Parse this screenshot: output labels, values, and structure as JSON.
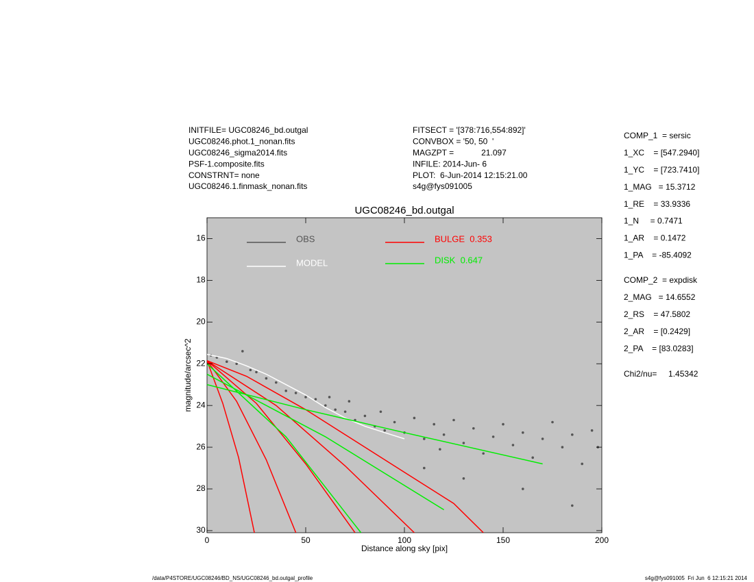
{
  "header": {
    "left": [
      "INITFILE= UGC08246_bd.outgal",
      "UGC08246.phot.1_nonan.fits",
      "UGC08246_sigma2014.fits",
      "PSF-1.composite.fits",
      "CONSTRNT= none",
      "UGC08246.1.finmask_nonan.fits"
    ],
    "middle": [
      "FITSECT = '[378:716,554:892]'",
      "CONVBOX = '50, 50  '",
      "MAGZPT =            21.097",
      "INFILE: 2014-Jun- 6",
      "PLOT:  6-Jun-2014 12:15:21.00",
      "s4g@fys091005"
    ],
    "right": [
      [
        "COMP_1  = sersic",
        "1_XC    = [547.2940]",
        "1_YC    = [723.7410]",
        "1_MAG   = 15.3712",
        "1_RE    = 33.9336",
        "1_N     = 0.7471",
        "1_AR    = 0.1472",
        "1_PA    = -85.4092"
      ],
      [
        "COMP_2  = expdisk",
        "2_MAG   = 14.6552",
        "2_RS    = 47.5802",
        "2_AR    = [0.2429]",
        "2_PA    = [83.0283]"
      ],
      [
        "Chi2/nu=     1.45342"
      ]
    ]
  },
  "footer": {
    "left": "/data/P4STORE/UGC08246/BD_NS/UGC08246_bd.outgal_profile",
    "right": "s4g@fys091005  Fri Jun  6 12:15:21 2014"
  },
  "chart_data": {
    "type": "line",
    "title": "UGC08246_bd.outgal",
    "xlabel": "Distance along sky [pix]",
    "ylabel": "magnitude/arcsec^2",
    "xlim": [
      0,
      200
    ],
    "ylim": [
      30.1,
      15
    ],
    "xticks": [
      0,
      50,
      100,
      150,
      200
    ],
    "yticks": [
      16,
      18,
      20,
      22,
      24,
      26,
      28,
      30
    ],
    "background": "#c4c4c4",
    "series": [
      {
        "name": "OBS",
        "color": "#555555",
        "mode": "markers",
        "x": [
          2,
          5,
          10,
          15,
          18,
          22,
          25,
          30,
          35,
          40,
          45,
          50,
          55,
          60,
          62,
          65,
          70,
          72,
          75,
          80,
          85,
          88,
          90,
          95,
          100,
          105,
          110,
          115,
          118,
          120,
          125,
          130,
          135,
          140,
          145,
          150,
          155,
          160,
          165,
          170,
          175,
          180,
          185,
          190,
          195,
          198,
          160,
          130,
          185,
          110
        ],
        "values": [
          21.6,
          21.7,
          21.9,
          22.0,
          21.4,
          22.3,
          22.4,
          22.7,
          22.9,
          23.3,
          23.4,
          23.6,
          23.7,
          24.0,
          23.6,
          24.2,
          24.3,
          23.8,
          24.7,
          24.5,
          25.0,
          24.3,
          25.2,
          24.8,
          25.3,
          24.6,
          25.6,
          24.9,
          26.1,
          25.4,
          24.7,
          25.8,
          25.1,
          26.3,
          25.5,
          24.9,
          25.9,
          25.3,
          26.5,
          25.6,
          24.8,
          26.0,
          25.4,
          26.8,
          25.2,
          26.0,
          28.0,
          27.5,
          28.8,
          27.0
        ]
      },
      {
        "name": "MODEL",
        "color": "#ffffff",
        "mode": "lines",
        "x": [
          0,
          10,
          20,
          30,
          40,
          50,
          60,
          70,
          80,
          90,
          100
        ],
        "values": [
          21.55,
          21.75,
          22.1,
          22.5,
          23.0,
          23.5,
          24.1,
          24.6,
          25.0,
          25.3,
          25.6
        ]
      },
      {
        "name": "BULGE  0.353",
        "color": "#ff0000",
        "mode": "lines",
        "x": [
          0,
          8,
          16,
          24,
          null,
          0,
          15,
          30,
          45,
          null,
          0,
          25,
          50,
          75,
          null,
          0,
          35,
          70,
          105,
          null,
          0,
          20,
          50,
          75,
          100,
          125,
          140
        ],
        "values": [
          21.85,
          23.9,
          26.5,
          30.1,
          null,
          21.85,
          23.8,
          26.6,
          30.1,
          null,
          21.85,
          23.9,
          26.8,
          30.1,
          null,
          21.85,
          24.0,
          26.9,
          30.1,
          null,
          21.85,
          22.6,
          24.2,
          25.7,
          27.2,
          28.7,
          30.1
        ]
      },
      {
        "name": "DISK  0.647",
        "color": "#00ee00",
        "mode": "lines",
        "x": [
          0,
          50,
          100,
          170,
          null,
          0,
          40,
          78,
          null,
          0,
          60,
          120
        ],
        "values": [
          23.0,
          24.2,
          25.3,
          26.8,
          null,
          22.0,
          25.5,
          30.1,
          null,
          22.5,
          25.5,
          29.0
        ]
      }
    ]
  }
}
